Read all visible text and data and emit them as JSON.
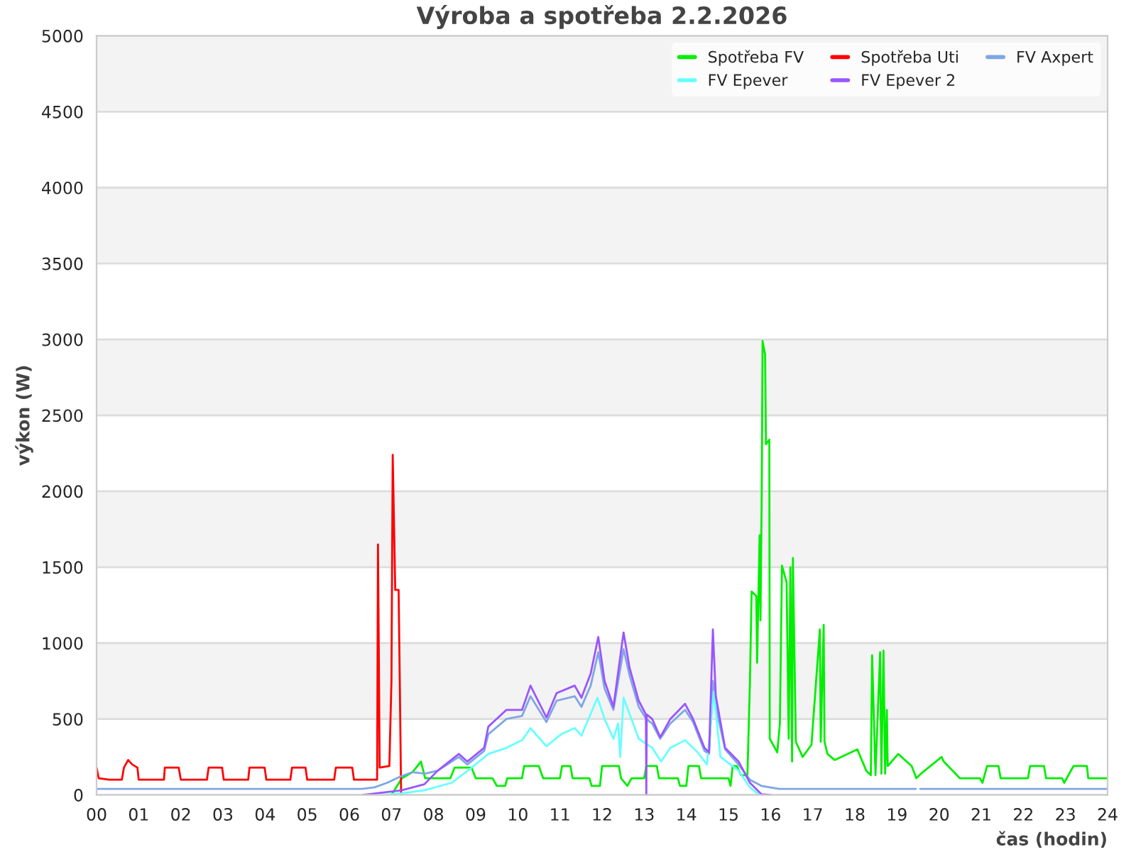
{
  "chart_data": {
    "type": "line",
    "title": "Výroba a spotřeba 2.2.2026",
    "xlabel": "čas (hodin)",
    "ylabel": "výkon (W)",
    "xlim": [
      0,
      24
    ],
    "ylim": [
      0,
      5000
    ],
    "xticks": [
      {
        "value": 0,
        "label": "00"
      },
      {
        "value": 1,
        "label": "01"
      },
      {
        "value": 2,
        "label": "02"
      },
      {
        "value": 3,
        "label": "03"
      },
      {
        "value": 4,
        "label": "04"
      },
      {
        "value": 5,
        "label": "05"
      },
      {
        "value": 6,
        "label": "06"
      },
      {
        "value": 7,
        "label": "07"
      },
      {
        "value": 8,
        "label": "08"
      },
      {
        "value": 9,
        "label": "09"
      },
      {
        "value": 10,
        "label": "10"
      },
      {
        "value": 11,
        "label": "11"
      },
      {
        "value": 12,
        "label": "12"
      },
      {
        "value": 13,
        "label": "13"
      },
      {
        "value": 14,
        "label": "14"
      },
      {
        "value": 15,
        "label": "15"
      },
      {
        "value": 16,
        "label": "16"
      },
      {
        "value": 17,
        "label": "17"
      },
      {
        "value": 18,
        "label": "18"
      },
      {
        "value": 19,
        "label": "19"
      },
      {
        "value": 20,
        "label": "20"
      },
      {
        "value": 21,
        "label": "21"
      },
      {
        "value": 22,
        "label": "22"
      },
      {
        "value": 23,
        "label": "23"
      },
      {
        "value": 24,
        "label": "24"
      }
    ],
    "yticks": [
      0,
      500,
      1000,
      1500,
      2000,
      2500,
      3000,
      3500,
      4000,
      4500,
      5000
    ],
    "grid": "y",
    "legend": "top right",
    "marker": "none",
    "line_style": "solid",
    "series": [
      {
        "name": "Spotřeba FV",
        "color": "#00ee00",
        "x": [
          7.0,
          7.25,
          7.5,
          7.7,
          7.8,
          8.0,
          8.4,
          8.5,
          8.9,
          9.0,
          9.4,
          9.5,
          9.7,
          9.75,
          10.1,
          10.15,
          10.5,
          10.6,
          11.0,
          11.05,
          11.25,
          11.3,
          11.7,
          11.75,
          11.95,
          12.0,
          12.4,
          12.45,
          12.6,
          12.7,
          13.0,
          13.05,
          13.3,
          13.35,
          13.8,
          13.85,
          14.0,
          14.05,
          14.3,
          14.35,
          15.0,
          15.05,
          15.1,
          15.2,
          15.3,
          15.45,
          15.51,
          15.55,
          15.66,
          15.68,
          15.74,
          15.76,
          15.79,
          15.81,
          15.87,
          15.89,
          15.97,
          15.98,
          16.16,
          16.22,
          16.24,
          16.27,
          16.38,
          16.43,
          16.47,
          16.51,
          16.53,
          16.56,
          16.6,
          16.76,
          16.97,
          17.17,
          17.19,
          17.26,
          17.28,
          17.35,
          17.52,
          18.06,
          18.27,
          18.38,
          18.41,
          18.49,
          18.6,
          18.63,
          18.68,
          18.72,
          18.76,
          18.78,
          19.03,
          19.35,
          19.46,
          19.57,
          20.06,
          20.11,
          20.49,
          20.97,
          21.03,
          21.14,
          21.41,
          21.46,
          22.11,
          22.16,
          22.49,
          22.54,
          22.92,
          22.97,
          23.19,
          23.51,
          23.54,
          24.0
        ],
        "values": [
          0,
          110,
          150,
          220,
          110,
          110,
          110,
          180,
          180,
          110,
          110,
          60,
          60,
          110,
          110,
          190,
          190,
          110,
          110,
          190,
          190,
          110,
          110,
          60,
          60,
          190,
          190,
          110,
          60,
          110,
          110,
          190,
          190,
          110,
          110,
          60,
          60,
          190,
          190,
          110,
          110,
          60,
          190,
          190,
          130,
          130,
          750,
          1340,
          1310,
          870,
          1710,
          1150,
          2000,
          2990,
          2900,
          2310,
          2340,
          370,
          280,
          470,
          870,
          1510,
          1400,
          370,
          1500,
          220,
          1560,
          1030,
          350,
          250,
          330,
          1090,
          350,
          1120,
          350,
          270,
          230,
          300,
          160,
          130,
          920,
          130,
          940,
          140,
          950,
          140,
          560,
          190,
          270,
          190,
          110,
          140,
          250,
          220,
          110,
          110,
          80,
          190,
          190,
          110,
          110,
          190,
          190,
          110,
          110,
          80,
          190,
          190,
          110,
          110
        ]
      },
      {
        "name": "Spotřeba Uti",
        "color": "#ff0000",
        "x": [
          0.0,
          0.05,
          0.3,
          0.6,
          0.65,
          0.75,
          0.85,
          0.97,
          1.0,
          1.6,
          1.62,
          1.95,
          2.0,
          2.62,
          2.66,
          2.98,
          3.02,
          3.6,
          3.63,
          3.99,
          4.03,
          4.6,
          4.64,
          4.96,
          5.0,
          5.64,
          5.68,
          6.07,
          6.11,
          6.66,
          6.68,
          6.7,
          6.72,
          6.95,
          7.0,
          7.03,
          7.06,
          7.09,
          7.17,
          7.2,
          7.23
        ],
        "values": [
          180,
          110,
          100,
          100,
          180,
          230,
          200,
          180,
          100,
          100,
          180,
          180,
          100,
          100,
          180,
          180,
          100,
          100,
          180,
          180,
          100,
          100,
          180,
          180,
          100,
          100,
          180,
          180,
          100,
          100,
          1650,
          950,
          180,
          190,
          750,
          2240,
          1800,
          1350,
          1350,
          700,
          0
        ]
      },
      {
        "name": "FV Axpert",
        "color": "#7fa6e6",
        "x": [
          0.0,
          6.3,
          6.6,
          6.9,
          7.2,
          7.5,
          7.8,
          8.1,
          8.6,
          8.8,
          9.2,
          9.3,
          9.73,
          10.1,
          10.3,
          10.68,
          10.92,
          11.35,
          11.51,
          11.73,
          11.91,
          12.06,
          12.27,
          12.51,
          12.65,
          12.87,
          13.05,
          13.19,
          13.38,
          13.62,
          13.97,
          14.16,
          14.43,
          14.54,
          14.63,
          14.7,
          14.92,
          15.24,
          15.51,
          15.78,
          16.2,
          19.45,
          19.5,
          19.55,
          24.0
        ],
        "values": [
          40,
          40,
          50,
          80,
          120,
          150,
          140,
          160,
          250,
          200,
          290,
          400,
          500,
          520,
          650,
          480,
          620,
          650,
          580,
          720,
          940,
          700,
          560,
          960,
          790,
          580,
          500,
          470,
          370,
          470,
          560,
          480,
          290,
          270,
          750,
          580,
          300,
          200,
          100,
          60,
          40,
          40,
          null,
          40,
          40
        ]
      },
      {
        "name": "FV Epever",
        "color": "#66ffff",
        "x": [
          6.8,
          7.24,
          7.78,
          8.43,
          8.86,
          9.3,
          9.73,
          10.1,
          10.3,
          10.68,
          11.03,
          11.35,
          11.51,
          11.89,
          12.06,
          12.27,
          12.38,
          12.43,
          12.51,
          12.87,
          13.19,
          13.4,
          13.62,
          13.97,
          14.27,
          14.49,
          14.65,
          14.81,
          15.24,
          15.51,
          15.73
        ],
        "values": [
          0,
          10,
          30,
          80,
          170,
          270,
          310,
          360,
          440,
          320,
          400,
          440,
          390,
          640,
          500,
          370,
          470,
          250,
          640,
          370,
          310,
          220,
          310,
          360,
          280,
          200,
          680,
          250,
          160,
          50,
          0
        ]
      },
      {
        "name": "FV Epever 2",
        "color": "#9955ff",
        "x": [
          6.32,
          7.24,
          7.78,
          8.1,
          8.6,
          8.8,
          9.2,
          9.3,
          9.73,
          10.1,
          10.3,
          10.68,
          10.92,
          11.35,
          11.51,
          11.73,
          11.91,
          12.06,
          12.27,
          12.51,
          12.65,
          12.87,
          13.04,
          13.05,
          13.06,
          13.19,
          13.38,
          13.62,
          13.97,
          14.16,
          14.43,
          14.54,
          14.63,
          14.7,
          14.92,
          15.24,
          15.51,
          15.78,
          16.0
        ],
        "values": [
          0,
          30,
          70,
          160,
          270,
          220,
          310,
          450,
          560,
          560,
          720,
          510,
          670,
          720,
          640,
          800,
          1040,
          750,
          580,
          1070,
          840,
          620,
          530,
          0,
          530,
          500,
          380,
          500,
          600,
          500,
          310,
          280,
          1090,
          650,
          310,
          220,
          80,
          5,
          0
        ]
      }
    ]
  }
}
